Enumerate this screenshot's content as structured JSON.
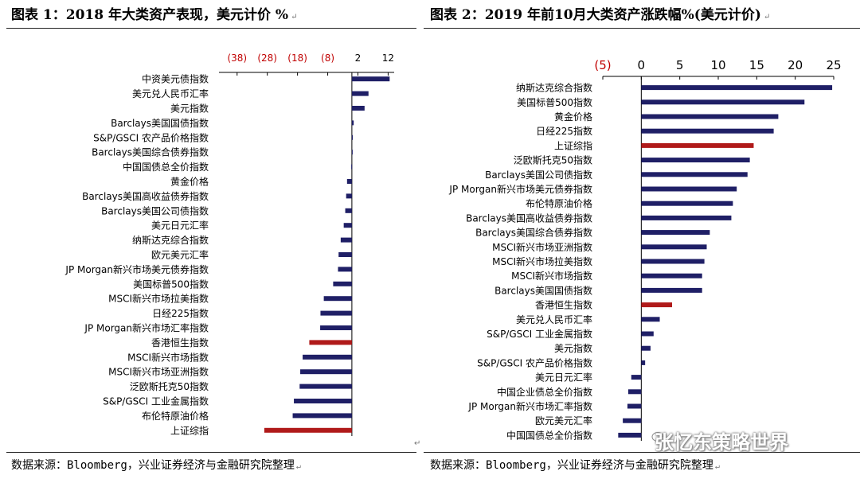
{
  "left": {
    "title": "图表 1：2018 年大类资产表现，美元计价 %",
    "source": "数据来源：Bloomberg，兴业证券经济与金融研究院整理",
    "chart_data": {
      "type": "bar",
      "orientation": "horizontal",
      "xlim": [
        -44,
        14
      ],
      "ticks": [
        {
          "value": -38,
          "label": "(38)",
          "negative": true
        },
        {
          "value": -28,
          "label": "(28)",
          "negative": true
        },
        {
          "value": -18,
          "label": "(18)",
          "negative": true
        },
        {
          "value": -8,
          "label": "(8)",
          "negative": true
        },
        {
          "value": 2,
          "label": "2",
          "negative": false
        },
        {
          "value": 12,
          "label": "12",
          "negative": false
        }
      ],
      "categories": [
        "中资美元债指数",
        "美元兑人民币汇率",
        "美元指数",
        "Barclays美国国债指数",
        "S&P/GSCI 农产品价格指数",
        "Barclays美国综合债券指数",
        "中国国债总全价指数",
        "黄金价格",
        "Barclays美国高收益债券指数",
        "Barclays美国公司债指数",
        "美元日元汇率",
        "纳斯达克综合指数",
        "欧元美元汇率",
        "JP Morgan新兴市场美元债券指数",
        "美国标普500指数",
        "MSCI新兴市场拉美指数",
        "日经225指数",
        "JP Morgan新兴市场汇率指数",
        "香港恒生指数",
        "MSCI新兴市场指数",
        "MSCI新兴市场亚洲指数",
        "泛欧斯托克50指数",
        "S&P/GSCI 工业金属指数",
        "布伦特原油价格",
        "上证综指"
      ],
      "values": [
        12.5,
        5.5,
        4.2,
        0.6,
        0.3,
        0.0,
        -0.2,
        -1.6,
        -1.9,
        -2.2,
        -2.7,
        -3.7,
        -4.4,
        -4.6,
        -6.2,
        -9.3,
        -10.4,
        -10.5,
        -14.1,
        -16.3,
        -17.1,
        -17.3,
        -19.2,
        -19.6,
        -29.0
      ],
      "highlight": [
        "香港恒生指数",
        "上证综指"
      ]
    }
  },
  "right": {
    "title": "图表 2：2019 年前10月大类资产涨跌幅%(美元计价)",
    "source": "数据来源：Bloomberg，兴业证券经济与金融研究院整理",
    "chart_data": {
      "type": "bar",
      "orientation": "horizontal",
      "xlim": [
        -5,
        25
      ],
      "ticks": [
        {
          "value": -5,
          "label": "(5)",
          "negative": true
        },
        {
          "value": 0,
          "label": "0",
          "negative": false
        },
        {
          "value": 5,
          "label": "5",
          "negative": false
        },
        {
          "value": 10,
          "label": "10",
          "negative": false
        },
        {
          "value": 15,
          "label": "15",
          "negative": false
        },
        {
          "value": 20,
          "label": "20",
          "negative": false
        },
        {
          "value": 25,
          "label": "25",
          "negative": false
        }
      ],
      "categories": [
        "纳斯达克综合指数",
        "美国标普500指数",
        "黄金价格",
        "日经225指数",
        "上证综指",
        "泛欧斯托克50指数",
        "Barclays美国公司债指数",
        "JP Morgan新兴市场美元债券指数",
        "布伦特原油价格",
        "Barclays美国高收益债券指数",
        "Barclays美国综合债券指数",
        "MSCI新兴市场亚洲指数",
        "MSCI新兴市场拉美指数",
        "MSCI新兴市场指数",
        "Barclays美国国债指数",
        "香港恒生指数",
        "美元兑人民币汇率",
        "S&P/GSCI 工业金属指数",
        "美元指数",
        "S&P/GSCI 农产品价格指数",
        "美元日元汇率",
        "中国企业债总全价指数",
        "JP Morgan新兴市场汇率指数",
        "欧元美元汇率",
        "中国国债总全价指数"
      ],
      "values": [
        24.8,
        21.2,
        17.8,
        17.2,
        14.6,
        14.1,
        13.8,
        12.4,
        11.9,
        11.7,
        8.9,
        8.5,
        8.2,
        7.9,
        7.9,
        4.0,
        2.4,
        1.6,
        1.2,
        0.5,
        -1.3,
        -1.7,
        -1.8,
        -2.4,
        -3.0
      ],
      "highlight": [
        "上证综指",
        "香港恒生指数"
      ]
    }
  },
  "colors": {
    "bar": "#1f1f66",
    "highlight": "#b01a1a",
    "negative_tick": "#c00000",
    "axis": "#000000"
  },
  "watermark": "张忆东策略世界",
  "watermark_icon": "wechat-icon"
}
